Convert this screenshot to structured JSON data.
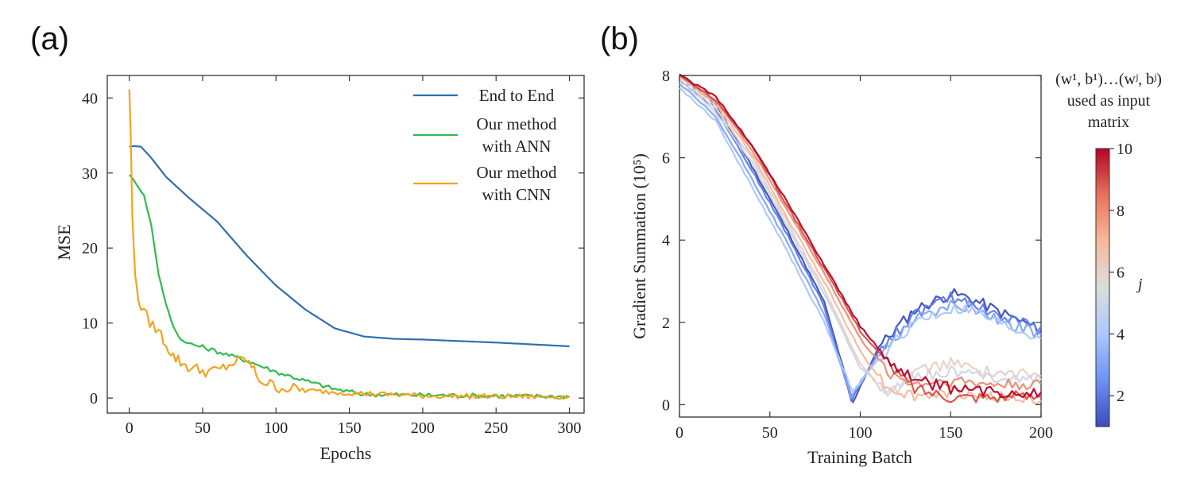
{
  "panels": {
    "a": "(a)",
    "b": "(b)"
  },
  "chart_data": [
    {
      "type": "line",
      "xlabel": "Epochs",
      "ylabel": "MSE",
      "xlim": [
        -15,
        310
      ],
      "ylim": [
        -2,
        43
      ],
      "xticks": [
        0,
        50,
        100,
        150,
        200,
        250,
        300
      ],
      "yticks": [
        0,
        10,
        20,
        30,
        40
      ],
      "legend_position": "top-right",
      "legend": [
        {
          "lines": [
            "End to End"
          ],
          "color": "#2e6fb0"
        },
        {
          "lines": [
            "Our method",
            "with ANN"
          ],
          "color": "#2ebd4f"
        },
        {
          "lines": [
            "Our method",
            "with CNN"
          ],
          "color": "#f5a31d"
        }
      ],
      "series": [
        {
          "name": "End to End",
          "color": "#2e6fb0",
          "x": [
            0,
            3,
            8,
            15,
            25,
            40,
            60,
            80,
            100,
            120,
            140,
            160,
            180,
            200,
            250,
            300
          ],
          "y": [
            33.5,
            33.6,
            33.5,
            32.0,
            29.5,
            26.8,
            23.5,
            19.0,
            15.0,
            11.8,
            9.3,
            8.2,
            7.9,
            7.8,
            7.4,
            6.9
          ]
        },
        {
          "name": "Our method with ANN",
          "color": "#2ebd4f",
          "x": [
            0,
            5,
            10,
            15,
            20,
            25,
            30,
            35,
            40,
            50,
            60,
            80,
            100,
            120,
            140,
            160,
            200,
            250,
            300
          ],
          "y": [
            29.8,
            28.5,
            27.0,
            23.0,
            16.5,
            12.5,
            9.5,
            7.8,
            7.3,
            6.8,
            6.2,
            5.0,
            3.5,
            2.3,
            1.2,
            0.5,
            0.4,
            0.3,
            0.2
          ]
        },
        {
          "name": "Our method with CNN",
          "color": "#f5a31d",
          "x": [
            0,
            1,
            2,
            4,
            6,
            8,
            12,
            16,
            20,
            25,
            30,
            35,
            40,
            50,
            60,
            70,
            80,
            85,
            90,
            100,
            120,
            140,
            160,
            200,
            250,
            300
          ],
          "y": [
            41.2,
            35.0,
            24.5,
            16.5,
            13.2,
            11.8,
            10.8,
            9.6,
            9.0,
            7.2,
            5.6,
            4.8,
            4.2,
            3.6,
            3.6,
            4.6,
            5.2,
            3.6,
            2.3,
            1.5,
            1.0,
            0.8,
            0.6,
            0.3,
            0.2,
            0.2
          ]
        }
      ]
    },
    {
      "type": "line",
      "xlabel": "Training Batch",
      "ylabel": "Gradient Summation (10⁵)",
      "xlim": [
        0,
        200
      ],
      "ylim": [
        -0.3,
        8
      ],
      "xticks": [
        0,
        50,
        100,
        150,
        200
      ],
      "yticks": [
        0,
        2,
        4,
        6,
        8
      ],
      "colorbar": {
        "title": [
          "(w¹, b¹)…(wʲ, bʲ)",
          "used as input",
          "matrix"
        ],
        "label": "j",
        "range": [
          1,
          10
        ],
        "ticks": [
          2,
          4,
          6,
          8,
          10
        ],
        "colormap": "coolwarm",
        "colors": [
          "#3a4cc0",
          "#6f92f3",
          "#aac7fd",
          "#dcdddd",
          "#f7b89c",
          "#e7745b",
          "#b40426"
        ]
      },
      "series": [
        {
          "j": 1,
          "x": [
            0,
            20,
            40,
            60,
            80,
            96,
            110,
            130,
            150,
            160,
            180,
            200
          ],
          "y": [
            8.0,
            7.3,
            5.8,
            4.2,
            2.5,
            0.05,
            1.4,
            2.3,
            2.7,
            2.6,
            2.2,
            1.8
          ]
        },
        {
          "j": 2,
          "x": [
            0,
            20,
            40,
            60,
            80,
            95,
            110,
            130,
            150,
            160,
            180,
            200
          ],
          "y": [
            7.9,
            7.2,
            5.7,
            4.1,
            2.4,
            0.1,
            1.3,
            2.2,
            2.6,
            2.5,
            2.1,
            1.9
          ]
        },
        {
          "j": 3,
          "x": [
            0,
            20,
            40,
            60,
            80,
            95,
            110,
            130,
            150,
            160,
            180,
            200
          ],
          "y": [
            7.8,
            7.0,
            5.5,
            3.9,
            2.2,
            0.2,
            1.2,
            2.1,
            2.4,
            2.4,
            2.0,
            1.7
          ]
        },
        {
          "j": 4,
          "x": [
            0,
            20,
            40,
            60,
            80,
            96,
            110,
            130,
            150,
            160,
            180,
            200
          ],
          "y": [
            7.7,
            6.9,
            5.3,
            3.7,
            2.0,
            0.3,
            1.1,
            2.0,
            2.3,
            2.3,
            1.9,
            1.6
          ]
        },
        {
          "j": 5,
          "x": [
            0,
            20,
            40,
            60,
            80,
            100,
            115,
            130,
            150,
            170,
            200
          ],
          "y": [
            7.9,
            7.1,
            5.9,
            4.3,
            2.7,
            0.9,
            0.3,
            0.7,
            0.8,
            0.7,
            0.6
          ]
        },
        {
          "j": 6,
          "x": [
            0,
            20,
            40,
            60,
            80,
            100,
            115,
            130,
            150,
            170,
            200
          ],
          "y": [
            8.0,
            7.2,
            6.0,
            4.4,
            2.8,
            1.0,
            0.2,
            0.8,
            1.0,
            0.8,
            0.7
          ]
        },
        {
          "j": 7,
          "x": [
            0,
            20,
            40,
            60,
            80,
            100,
            115,
            130,
            150,
            170,
            200
          ],
          "y": [
            8.0,
            7.3,
            6.1,
            4.5,
            3.0,
            1.3,
            0.4,
            0.2,
            0.3,
            0.2,
            0.1
          ]
        },
        {
          "j": 8,
          "x": [
            0,
            20,
            40,
            60,
            80,
            100,
            115,
            130,
            150,
            170,
            200
          ],
          "y": [
            8.0,
            7.4,
            6.2,
            4.7,
            3.2,
            1.6,
            0.8,
            0.5,
            0.6,
            0.5,
            0.5
          ]
        },
        {
          "j": 9,
          "x": [
            0,
            20,
            40,
            60,
            80,
            100,
            115,
            130,
            150,
            170,
            200
          ],
          "y": [
            8.0,
            7.4,
            6.3,
            4.8,
            3.3,
            1.8,
            1.0,
            0.4,
            0.2,
            0.2,
            0.2
          ]
        },
        {
          "j": 10,
          "x": [
            0,
            20,
            40,
            60,
            80,
            100,
            115,
            130,
            150,
            170,
            200
          ],
          "y": [
            8.0,
            7.5,
            6.3,
            4.9,
            3.4,
            1.9,
            1.1,
            0.6,
            0.4,
            0.3,
            0.3
          ]
        }
      ]
    }
  ]
}
